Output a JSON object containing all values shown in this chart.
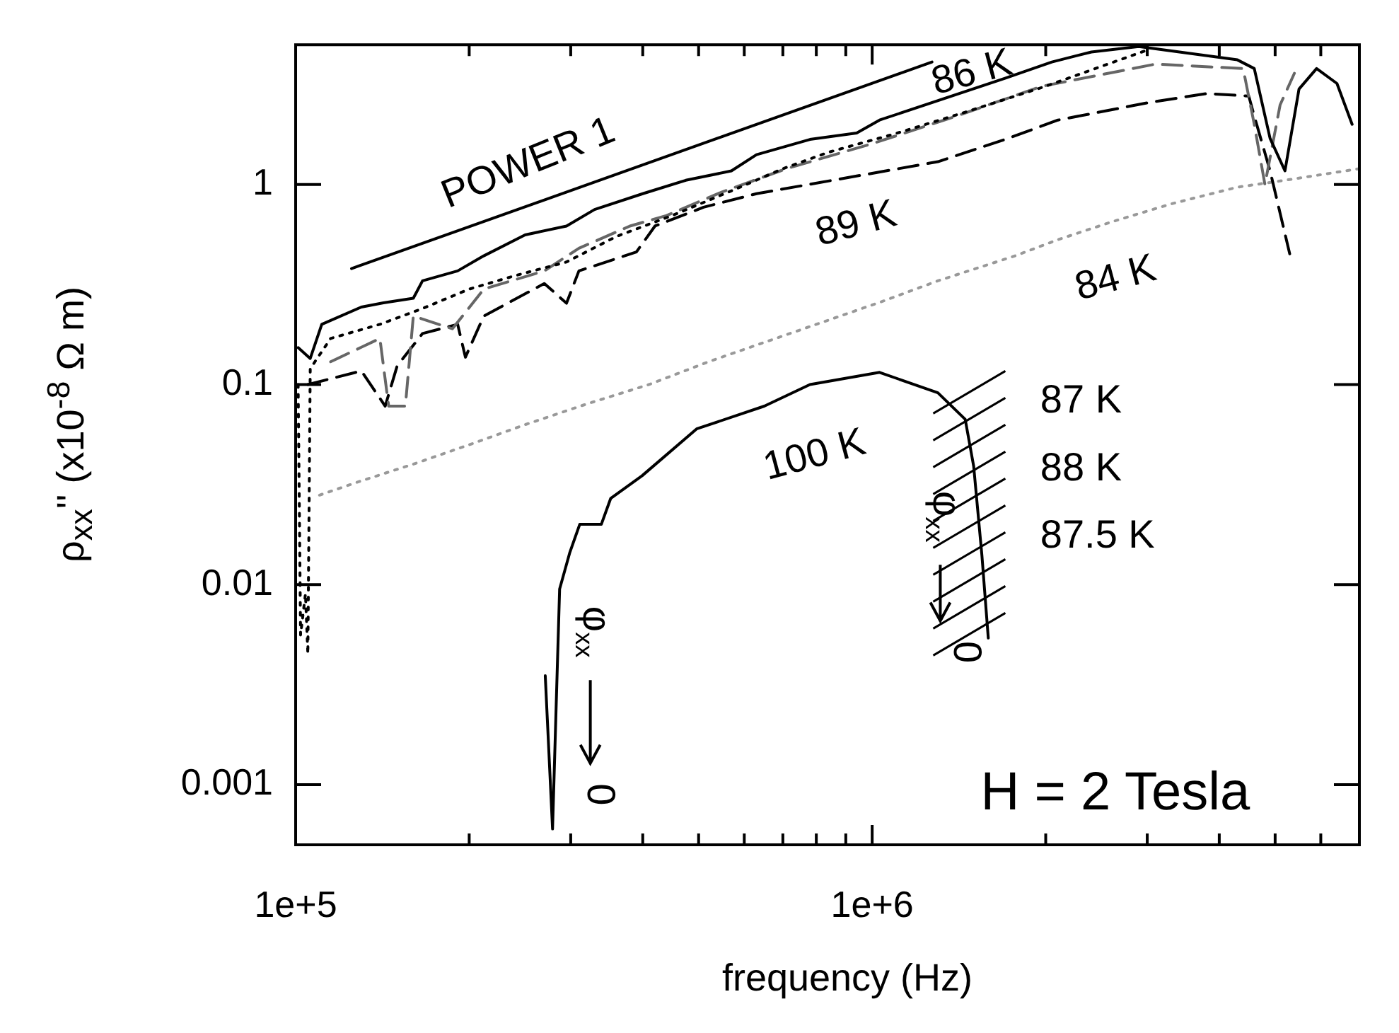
{
  "chart_data": {
    "type": "line",
    "xlabel": "frequency (Hz)",
    "ylabel": "ρ$_{xx}$'' (x10$^{-8}$ Ω m)",
    "log": "xy",
    "marker": "none",
    "xlim": [
      100000,
      7000000
    ],
    "ylim": [
      0.0005,
      5
    ],
    "xticks": [
      {
        "value": 100000,
        "label": "1e+5"
      },
      {
        "value": 200000,
        "label": null
      },
      {
        "value": 300000,
        "label": null
      },
      {
        "value": 400000,
        "label": null
      },
      {
        "value": 500000,
        "label": null
      },
      {
        "value": 600000,
        "label": null
      },
      {
        "value": 700000,
        "label": null
      },
      {
        "value": 800000,
        "label": null
      },
      {
        "value": 900000,
        "label": null
      },
      {
        "value": 1000000,
        "label": "1e+6"
      },
      {
        "value": 2000000,
        "label": null
      },
      {
        "value": 3000000,
        "label": null
      },
      {
        "value": 4000000,
        "label": null
      },
      {
        "value": 5000000,
        "label": null
      },
      {
        "value": 6000000,
        "label": null
      },
      {
        "value": 7000000,
        "label": null
      }
    ],
    "yticks": [
      0.001,
      0.01,
      0.1,
      1
    ],
    "series": [
      {
        "color": "#000000",
        "line_style": "solid",
        "x": [
          101000,
          106000,
          111000,
          130000,
          142000,
          160000,
          166000,
          191000,
          212000,
          250000,
          295000,
          330000,
          400000,
          475000,
          570000,
          630000,
          780000,
          940000,
          1030000,
          1700000,
          2050000,
          2400000,
          2900000,
          4300000,
          4600000,
          4900000,
          5200000,
          5500000,
          5900000,
          6400000,
          6800000
        ],
        "values": [
          0.153,
          0.135,
          0.2,
          0.244,
          0.256,
          0.27,
          0.33,
          0.37,
          0.44,
          0.56,
          0.62,
          0.75,
          0.9,
          1.05,
          1.17,
          1.41,
          1.68,
          1.81,
          2.1,
          3.4,
          4.1,
          4.6,
          4.9,
          4.2,
          3.8,
          1.7,
          1.17,
          3.0,
          3.8,
          3.2,
          2.0
        ]
      },
      {
        "color": "#000000",
        "line_style": "dotted",
        "x": [
          101000,
          102000,
          104000,
          105000,
          106000,
          115000,
          140000,
          166000,
          200000,
          240000,
          295000,
          360000,
          450000,
          580000,
          700000,
          840000,
          1100000,
          1450000,
          2000000,
          2500000,
          3000000
        ],
        "values": [
          0.1,
          0.0056,
          0.009,
          0.0045,
          0.12,
          0.17,
          0.2,
          0.24,
          0.3,
          0.35,
          0.41,
          0.55,
          0.7,
          0.95,
          1.2,
          1.45,
          1.8,
          2.3,
          3.1,
          3.9,
          4.7
        ]
      },
      {
        "color": "#666666",
        "line_style": "dashed",
        "x": [
          115000,
          140000,
          145000,
          155000,
          160000,
          187000,
          212000,
          270000,
          310000,
          380000,
          440000,
          550000,
          710000,
          1000000,
          1400000,
          1970000,
          3100000,
          4400000,
          4600000,
          4800000,
          5100000,
          5400000
        ],
        "values": [
          0.13,
          0.17,
          0.078,
          0.078,
          0.22,
          0.19,
          0.3,
          0.37,
          0.48,
          0.62,
          0.7,
          0.92,
          1.2,
          1.6,
          2.2,
          3.1,
          4.0,
          3.8,
          2.0,
          1.0,
          2.5,
          3.6
        ]
      },
      {
        "color": "#000000",
        "line_style": "dashed",
        "x": [
          105000,
          130000,
          143000,
          150000,
          166000,
          191000,
          197000,
          212000,
          270000,
          295000,
          310000,
          390000,
          420000,
          510000,
          630000,
          1300000,
          1700000,
          2100000,
          3000000,
          3800000,
          4500000,
          4600000,
          4900000,
          5300000
        ],
        "values": [
          0.1,
          0.117,
          0.078,
          0.124,
          0.18,
          0.2,
          0.137,
          0.22,
          0.32,
          0.255,
          0.37,
          0.46,
          0.62,
          0.77,
          0.9,
          1.3,
          1.68,
          2.1,
          2.56,
          2.85,
          2.77,
          2.2,
          1.17,
          0.45
        ]
      },
      {
        "color": "#999999",
        "line_style": "dotted",
        "x": [
          110000,
          130000,
          160000,
          200000,
          250000,
          320000,
          410000,
          520000,
          680000,
          840000,
          1040000,
          1300000,
          1770000,
          2100000,
          2600000,
          3300000,
          4300000,
          5200000,
          7000000
        ],
        "values": [
          0.028,
          0.033,
          0.04,
          0.05,
          0.063,
          0.08,
          0.1,
          0.13,
          0.17,
          0.21,
          0.26,
          0.33,
          0.44,
          0.53,
          0.65,
          0.8,
          0.97,
          1.05,
          1.2
        ]
      },
      {
        "color": "#000000",
        "line_style": "solid",
        "x": [
          271000,
          279000,
          287000,
          299000,
          311000,
          339000,
          352000,
          399000,
          496000,
          650000,
          780000,
          1030000,
          1300000,
          1450000,
          1500000,
          1550000,
          1590000
        ],
        "values": [
          0.0035,
          0.0006,
          0.0095,
          0.0145,
          0.02,
          0.02,
          0.027,
          0.035,
          0.06,
          0.078,
          0.1,
          0.115,
          0.091,
          0.067,
          0.039,
          0.014,
          0.0054
        ]
      },
      {
        "color": "#000000",
        "line_style": "solid",
        "x": [
          125000,
          1270000
        ],
        "values": [
          0.38,
          4.1
        ]
      }
    ],
    "annotations": [
      "POWER 1",
      "86 K",
      "89 K",
      "84 K",
      "100 K",
      "87 K",
      "88 K",
      "87.5 K",
      "φ$_{xx}$",
      "0",
      "φ$_{xx}$",
      "0",
      "H = 2 Tesla"
    ]
  }
}
